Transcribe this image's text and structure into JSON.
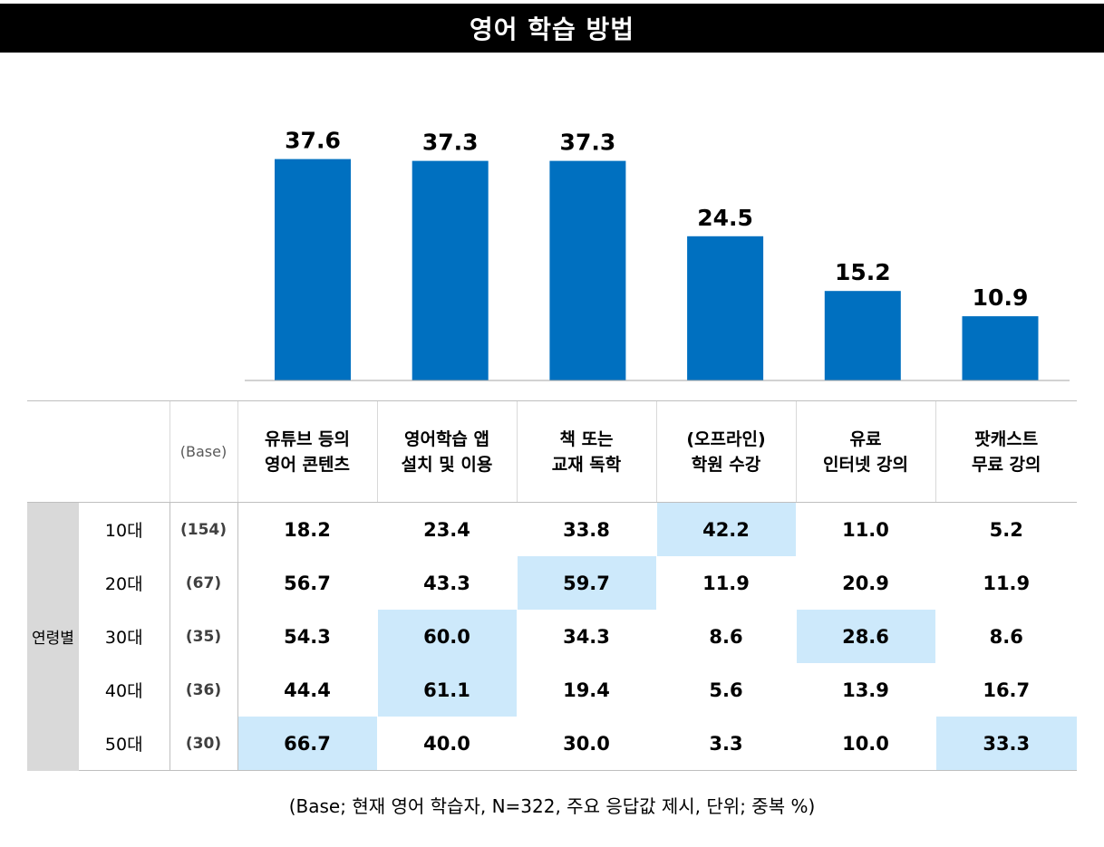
{
  "title": "영어 학습 방법",
  "footnote": "(Base; 현재 영어 학습자, N=322, 주요 응답값 제시, 단위; 중복 %)",
  "chart_data": {
    "type": "bar",
    "categories": [
      "유튜브 등의 영어 콘텐츠",
      "영어학습 앱 설치 및 이용",
      "책 또는 교재 독학",
      "(오프라인) 학원 수강",
      "유료 인터넷 강의",
      "팟캐스트 무료 강의"
    ],
    "values": [
      37.6,
      37.3,
      37.3,
      24.5,
      15.2,
      10.9
    ],
    "value_labels": [
      "37.6",
      "37.3",
      "37.3",
      "24.5",
      "15.2",
      "10.9"
    ],
    "bar_color": "#0070c0",
    "title": "영어 학습 방법"
  },
  "table": {
    "base_header": "(Base)",
    "group_label": "연령별",
    "columns": [
      [
        "유튜브 등의",
        "영어 콘텐츠"
      ],
      [
        "영어학습 앱",
        "설치 및 이용"
      ],
      [
        "책 또는",
        "교재 독학"
      ],
      [
        "(오프라인)",
        "학원 수강"
      ],
      [
        "유료",
        "인터넷 강의"
      ],
      [
        "팟캐스트",
        "무료 강의"
      ]
    ],
    "rows": [
      {
        "age": "10대",
        "base": "(154)",
        "values": [
          "18.2",
          "23.4",
          "33.8",
          "42.2",
          "11.0",
          "5.2"
        ],
        "highlight": 3
      },
      {
        "age": "20대",
        "base": "(67)",
        "values": [
          "56.7",
          "43.3",
          "59.7",
          "11.9",
          "20.9",
          "11.9"
        ],
        "highlight": 2
      },
      {
        "age": "30대",
        "base": "(35)",
        "values": [
          "54.3",
          "60.0",
          "34.3",
          "8.6",
          "28.6",
          "8.6"
        ],
        "highlight": [
          1,
          4
        ]
      },
      {
        "age": "40대",
        "base": "(36)",
        "values": [
          "44.4",
          "61.1",
          "19.4",
          "5.6",
          "13.9",
          "16.7"
        ],
        "highlight": 1
      },
      {
        "age": "50대",
        "base": "(30)",
        "values": [
          "66.7",
          "40.0",
          "30.0",
          "3.3",
          "10.0",
          "33.3"
        ],
        "highlight": [
          0,
          5
        ]
      }
    ],
    "highlight_color": "#cde9fb"
  }
}
